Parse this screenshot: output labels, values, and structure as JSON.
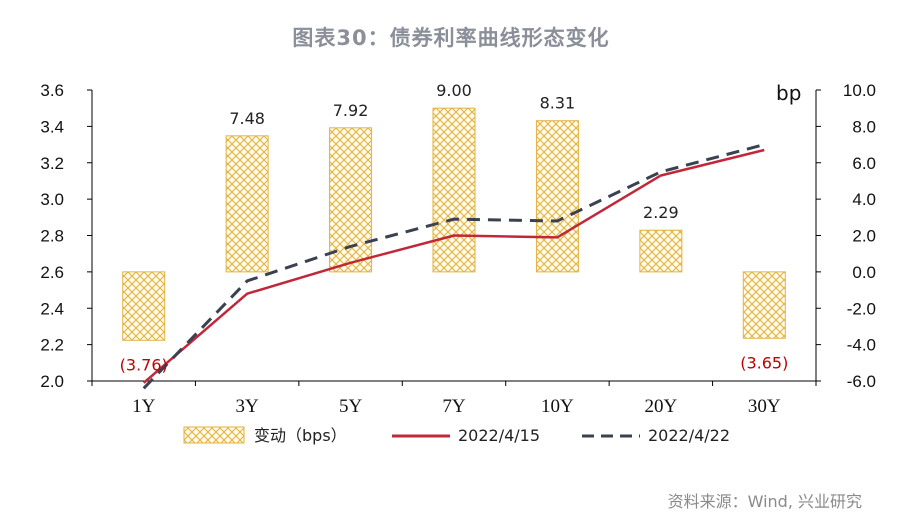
{
  "title": "图表30：债券利率曲线形态变化",
  "source": "资料来源：Wind, 兴业研究",
  "chart_data": {
    "type": "bar+line",
    "categories": [
      "1Y",
      "3Y",
      "5Y",
      "7Y",
      "10Y",
      "20Y",
      "30Y"
    ],
    "left_axis": {
      "ylim": [
        2.0,
        3.6
      ],
      "ticks": [
        "2.0",
        "2.2",
        "2.4",
        "2.6",
        "2.8",
        "3.0",
        "3.2",
        "3.4",
        "3.6"
      ]
    },
    "right_axis": {
      "unit": "bp",
      "ylim": [
        -6.0,
        10.0
      ],
      "ticks": [
        "-6.0",
        "-4.0",
        "-2.0",
        "0.0",
        "2.0",
        "4.0",
        "6.0",
        "8.0",
        "10.0"
      ]
    },
    "bars": {
      "name": "变动（bps）",
      "axis": "right",
      "values": [
        -3.76,
        7.48,
        7.92,
        9.0,
        8.31,
        2.29,
        -3.65
      ],
      "labels": [
        "(3.76)",
        "7.48",
        "7.92",
        "9.00",
        "8.31",
        "2.29",
        "(3.65)"
      ],
      "color": "#e8b84a"
    },
    "series": [
      {
        "name": "2022/4/15",
        "axis": "left",
        "style": "solid",
        "color": "#c0283a",
        "values": [
          1.99,
          2.48,
          2.65,
          2.8,
          2.79,
          3.13,
          3.27
        ]
      },
      {
        "name": "2022/4/22",
        "axis": "left",
        "style": "dashed",
        "color": "#3a4250",
        "values": [
          1.96,
          2.55,
          2.74,
          2.89,
          2.88,
          3.15,
          3.3
        ]
      }
    ]
  }
}
